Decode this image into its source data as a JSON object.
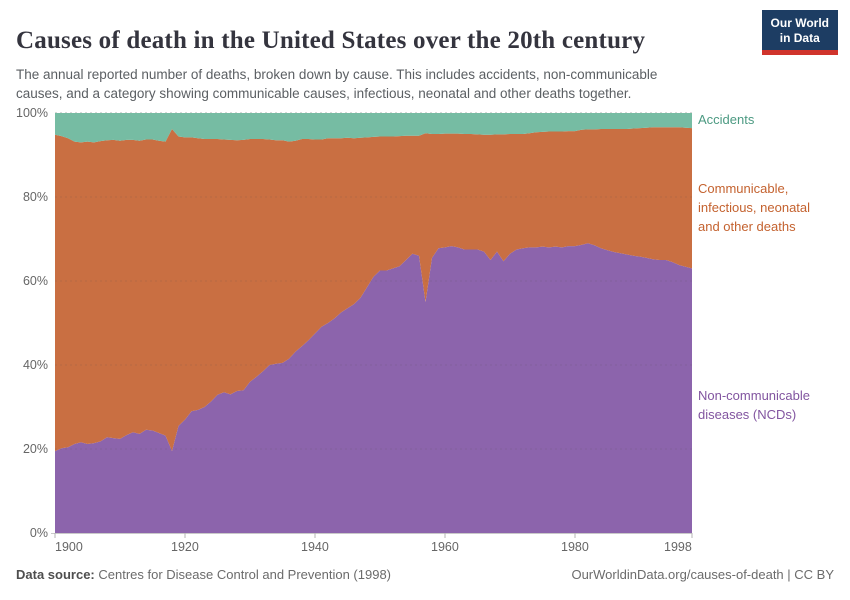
{
  "header": {
    "title": "Causes of death in the United States over the 20th century",
    "subtitle": "The annual reported number of deaths, broken down by cause. This includes accidents, non-communicable\ncauses, and a category showing communicable causes, infectious, neonatal and other deaths together.",
    "logo": {
      "line1": "Our World",
      "line2": "in Data"
    }
  },
  "chart_data": {
    "type": "area",
    "stacked": true,
    "percentage": true,
    "title": "Causes of death in the United States over the 20th century",
    "xlabel": "",
    "ylabel": "",
    "xlim": [
      1900,
      1998
    ],
    "ylim": [
      0,
      100
    ],
    "grid": "dashed horizontal",
    "legend_position": "right",
    "x": [
      1900,
      1901,
      1902,
      1903,
      1904,
      1905,
      1906,
      1907,
      1908,
      1909,
      1910,
      1911,
      1912,
      1913,
      1914,
      1915,
      1916,
      1917,
      1918,
      1919,
      1920,
      1921,
      1922,
      1923,
      1924,
      1925,
      1926,
      1927,
      1928,
      1929,
      1930,
      1931,
      1932,
      1933,
      1934,
      1935,
      1936,
      1937,
      1938,
      1939,
      1940,
      1941,
      1942,
      1943,
      1944,
      1945,
      1946,
      1947,
      1948,
      1949,
      1950,
      1951,
      1952,
      1953,
      1954,
      1955,
      1956,
      1957,
      1958,
      1959,
      1960,
      1961,
      1962,
      1963,
      1964,
      1965,
      1966,
      1967,
      1968,
      1969,
      1970,
      1971,
      1972,
      1973,
      1974,
      1975,
      1976,
      1977,
      1978,
      1979,
      1980,
      1981,
      1982,
      1983,
      1984,
      1985,
      1986,
      1987,
      1988,
      1989,
      1990,
      1991,
      1992,
      1993,
      1994,
      1995,
      1996,
      1997,
      1998
    ],
    "series": [
      {
        "name": "Non-communicable diseases (NCDs)",
        "key": "non-communicable-diseases",
        "color": "#8C64AC",
        "values": [
          19.5,
          20.2,
          20.4,
          21.2,
          21.6,
          21.2,
          21.4,
          21.8,
          22.8,
          22.6,
          22.4,
          23.3,
          24,
          23.6,
          24.6,
          24.4,
          23.8,
          23.2,
          19.5,
          25.5,
          27,
          29,
          29.3,
          30,
          31.3,
          32.9,
          33.5,
          33,
          33.8,
          34,
          36,
          37.2,
          38.5,
          40,
          40.3,
          40.5,
          41.5,
          43.2,
          44.5,
          45.9,
          47.5,
          49.1,
          50,
          51.1,
          52.5,
          53.5,
          54.5,
          56,
          58.5,
          61,
          62.5,
          62.5,
          63,
          63.5,
          65,
          66.5,
          66,
          55,
          65.5,
          67.8,
          68,
          68.3,
          68,
          67.5,
          67.5,
          67.5,
          67,
          65,
          67,
          64.7,
          66.5,
          67.5,
          67.8,
          68,
          68,
          68.2,
          68,
          68.2,
          68,
          68.3,
          68.3,
          68.6,
          69,
          68.5,
          67.8,
          67.3,
          66.9,
          66.6,
          66.3,
          66,
          65.8,
          65.5,
          65.2,
          65,
          65,
          64.5,
          63.8,
          63.4,
          63
        ]
      },
      {
        "name": "Communicable, infectious, neonatal and other deaths",
        "key": "communicable-infectious-neonatal-other",
        "color": "#C96F42",
        "values": [
          75.3,
          74.3,
          73.6,
          72,
          71.4,
          72,
          71.6,
          71.5,
          70.7,
          71,
          71,
          70.3,
          69.6,
          69.8,
          69.1,
          69.3,
          69.6,
          70,
          76.7,
          68.9,
          67.2,
          65.2,
          64.7,
          63.8,
          62.5,
          60.9,
          60.2,
          60.6,
          59.7,
          59.6,
          57.8,
          56.6,
          55.3,
          53.7,
          53.2,
          53,
          51.7,
          50.2,
          49.3,
          47.9,
          46.2,
          44.6,
          44,
          42.9,
          41.5,
          40.6,
          39.5,
          38.1,
          35.7,
          33.3,
          31.9,
          31.9,
          31.4,
          31,
          29.6,
          28.1,
          28.6,
          40.2,
          29.5,
          27.2,
          27.1,
          26.8,
          27.1,
          27.5,
          27.5,
          27.4,
          27.8,
          29.8,
          27.9,
          30.2,
          28.5,
          27.5,
          27.2,
          27.2,
          27.4,
          27.3,
          27.6,
          27.4,
          27.6,
          27.4,
          27.4,
          27.4,
          27.1,
          27.6,
          28.4,
          28.9,
          29.3,
          29.6,
          29.9,
          30.3,
          30.6,
          31,
          31.4,
          31.6,
          31.6,
          32.1,
          32.8,
          33.1,
          33.4
        ]
      },
      {
        "name": "Accidents",
        "key": "accidents",
        "color": "#76BCA3",
        "values": [
          5.2,
          5.5,
          6,
          6.8,
          7,
          6.8,
          7,
          6.7,
          6.5,
          6.4,
          6.6,
          6.4,
          6.4,
          6.6,
          6.3,
          6.3,
          6.6,
          6.8,
          3.8,
          5.6,
          5.8,
          5.8,
          6,
          6.2,
          6.2,
          6.2,
          6.3,
          6.4,
          6.5,
          6.4,
          6.2,
          6.2,
          6.2,
          6.3,
          6.5,
          6.5,
          6.8,
          6.6,
          6.2,
          6.2,
          6.3,
          6.3,
          6,
          6,
          6,
          5.9,
          6,
          5.9,
          5.8,
          5.7,
          5.6,
          5.6,
          5.6,
          5.5,
          5.4,
          5.4,
          5.4,
          4.8,
          5,
          5,
          4.9,
          4.9,
          4.9,
          5,
          5,
          5.1,
          5.2,
          5.2,
          5.1,
          5.1,
          5,
          5,
          5,
          4.8,
          4.6,
          4.5,
          4.4,
          4.4,
          4.4,
          4.3,
          4.3,
          4,
          3.9,
          3.9,
          3.8,
          3.8,
          3.8,
          3.8,
          3.8,
          3.7,
          3.6,
          3.5,
          3.4,
          3.4,
          3.4,
          3.4,
          3.4,
          3.5,
          3.6
        ]
      }
    ],
    "y_ticks": [
      0,
      20,
      40,
      60,
      80,
      100
    ],
    "y_tick_labels": [
      "0%",
      "20%",
      "40%",
      "60%",
      "80%",
      "100%"
    ],
    "x_ticks": [
      1900,
      1920,
      1940,
      1960,
      1980,
      1998
    ],
    "x_tick_labels": [
      "1900",
      "1920",
      "1940",
      "1960",
      "1980",
      "1998"
    ]
  },
  "legend": {
    "items": [
      {
        "label": "Accidents",
        "color": "#4C9A82"
      },
      {
        "label": "Communicable,\ninfectious, neonatal\nand other deaths",
        "color": "#C4622F"
      },
      {
        "label": "Non-communicable\ndiseases (NCDs)",
        "color": "#8255A0"
      }
    ]
  },
  "footer": {
    "source_label": "Data source:",
    "source_value": " Centres for Disease Control and Prevention (1998)",
    "right_text": "OurWorldinData.org/causes-of-death | CC BY"
  }
}
